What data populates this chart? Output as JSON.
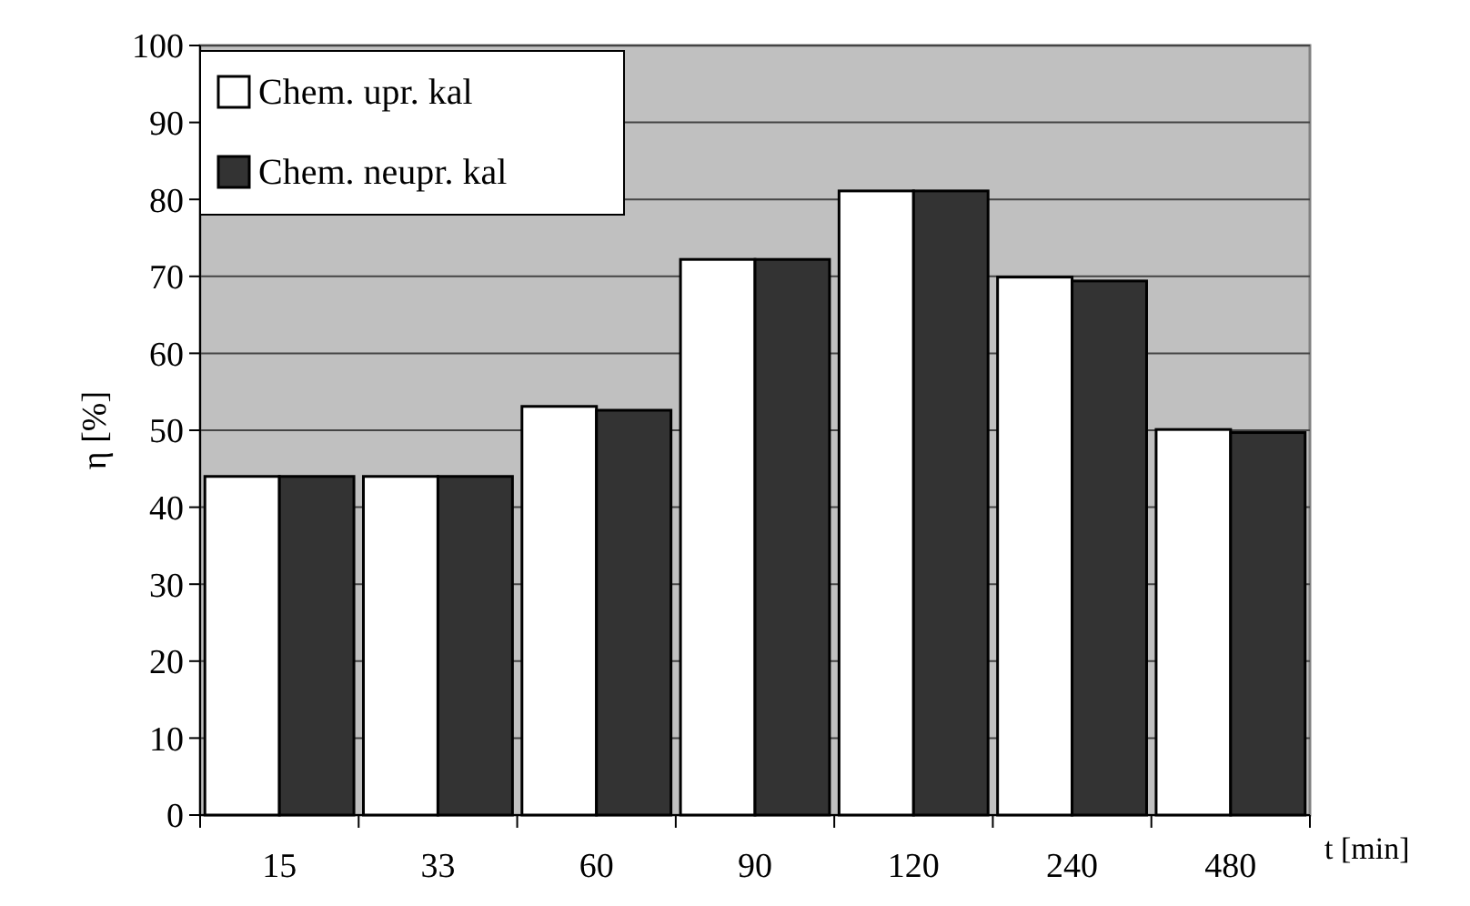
{
  "chart_data": {
    "type": "bar",
    "xlabel": "t [min]",
    "ylabel": "η [%]",
    "categories": [
      "15",
      "33",
      "60",
      "90",
      "120",
      "240",
      "480"
    ],
    "series": [
      {
        "name": "Chem. upr. kal",
        "color": "#ffffff",
        "values": [
          44,
          44,
          53.1,
          72.2,
          81.1,
          69.9,
          50.1
        ]
      },
      {
        "name": "Chem. neupr. kal",
        "color": "#333333",
        "values": [
          44,
          44,
          52.6,
          72.2,
          81.1,
          69.4,
          49.7
        ]
      }
    ],
    "ylim": [
      0,
      100
    ],
    "yticks": [
      0,
      10,
      20,
      30,
      40,
      50,
      60,
      70,
      80,
      90,
      100
    ],
    "grid": "y",
    "legend": "top left"
  }
}
